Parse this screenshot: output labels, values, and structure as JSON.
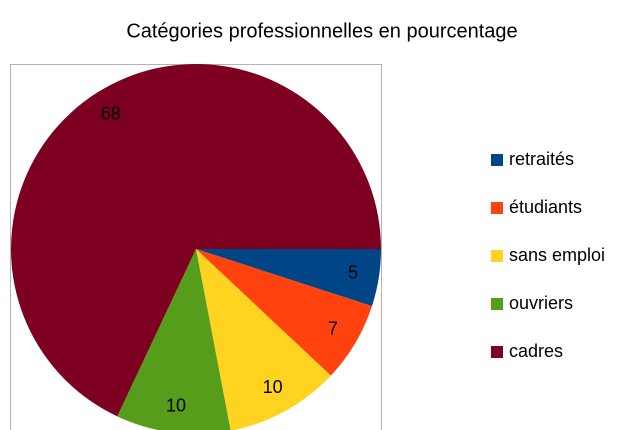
{
  "chart_data": {
    "type": "pie",
    "title": "Catégories professionnelles en pourcentage",
    "categories": [
      "retraités",
      "étudiants",
      "sans emploi",
      "ouvriers",
      "cadres"
    ],
    "values": [
      5,
      7,
      10,
      10,
      68
    ],
    "colors": [
      "#004586",
      "#ff420e",
      "#ffd320",
      "#579d1c",
      "#7e0021"
    ],
    "legend": "right"
  }
}
